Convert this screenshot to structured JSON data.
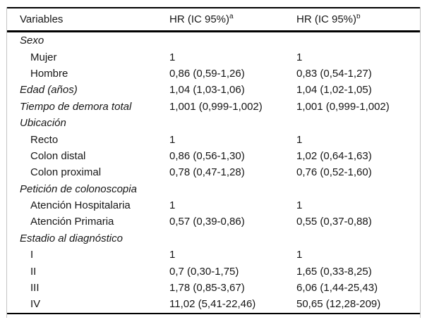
{
  "table": {
    "columns": [
      {
        "label": "Variables",
        "sup": ""
      },
      {
        "label": "HR (IC 95%)",
        "sup": "a"
      },
      {
        "label": "HR (IC 95%)",
        "sup": "b"
      }
    ],
    "rows": [
      {
        "label": "Sexo",
        "hr_a": "",
        "hr_b": ""
      },
      {
        "label": "Mujer",
        "hr_a": "1",
        "hr_b": "1"
      },
      {
        "label": "Hombre",
        "hr_a": "0,86 (0,59-1,26)",
        "hr_b": "0,83 (0,54-1,27)"
      },
      {
        "label": "Edad (años)",
        "hr_a": "1,04 (1,03-1,06)",
        "hr_b": "1,04 (1,02-1,05)"
      },
      {
        "label": "Tiempo de demora total",
        "hr_a": "1,001 (0,999-1,002)",
        "hr_b": "1,001 (0,999-1,002)"
      },
      {
        "label": "Ubicación",
        "hr_a": "",
        "hr_b": ""
      },
      {
        "label": "Recto",
        "hr_a": "1",
        "hr_b": "1"
      },
      {
        "label": "Colon distal",
        "hr_a": "0,86 (0,56-1,30)",
        "hr_b": "1,02 (0,64-1,63)"
      },
      {
        "label": "Colon proximal",
        "hr_a": "0,78 (0,47-1,28)",
        "hr_b": "0,76 (0,52-1,60)"
      },
      {
        "label": "Petición de colonoscopia",
        "hr_a": "",
        "hr_b": ""
      },
      {
        "label": "Atención Hospitalaria",
        "hr_a": "1",
        "hr_b": "1"
      },
      {
        "label": "Atención Primaria",
        "hr_a": "0,57 (0,39-0,86)",
        "hr_b": "0,55 (0,37-0,88)"
      },
      {
        "label": "Estadio al diagnóstico",
        "hr_a": "",
        "hr_b": ""
      },
      {
        "label": "I",
        "hr_a": "1",
        "hr_b": "1"
      },
      {
        "label": "II",
        "hr_a": "0,7 (0,30-1,75)",
        "hr_b": "1,65 (0,33-8,25)"
      },
      {
        "label": "III",
        "hr_a": "1,78 (0,85-3,67)",
        "hr_b": "6,06 (1,44-25,43)"
      },
      {
        "label": "IV",
        "hr_a": "11,02 (5,41-22,46)",
        "hr_b": "50,65 (12,28-209)"
      }
    ],
    "colors": {
      "rule": "#000000",
      "frame_border": "#c3c3c3",
      "text": "#161616",
      "background": "#ffffff"
    }
  }
}
